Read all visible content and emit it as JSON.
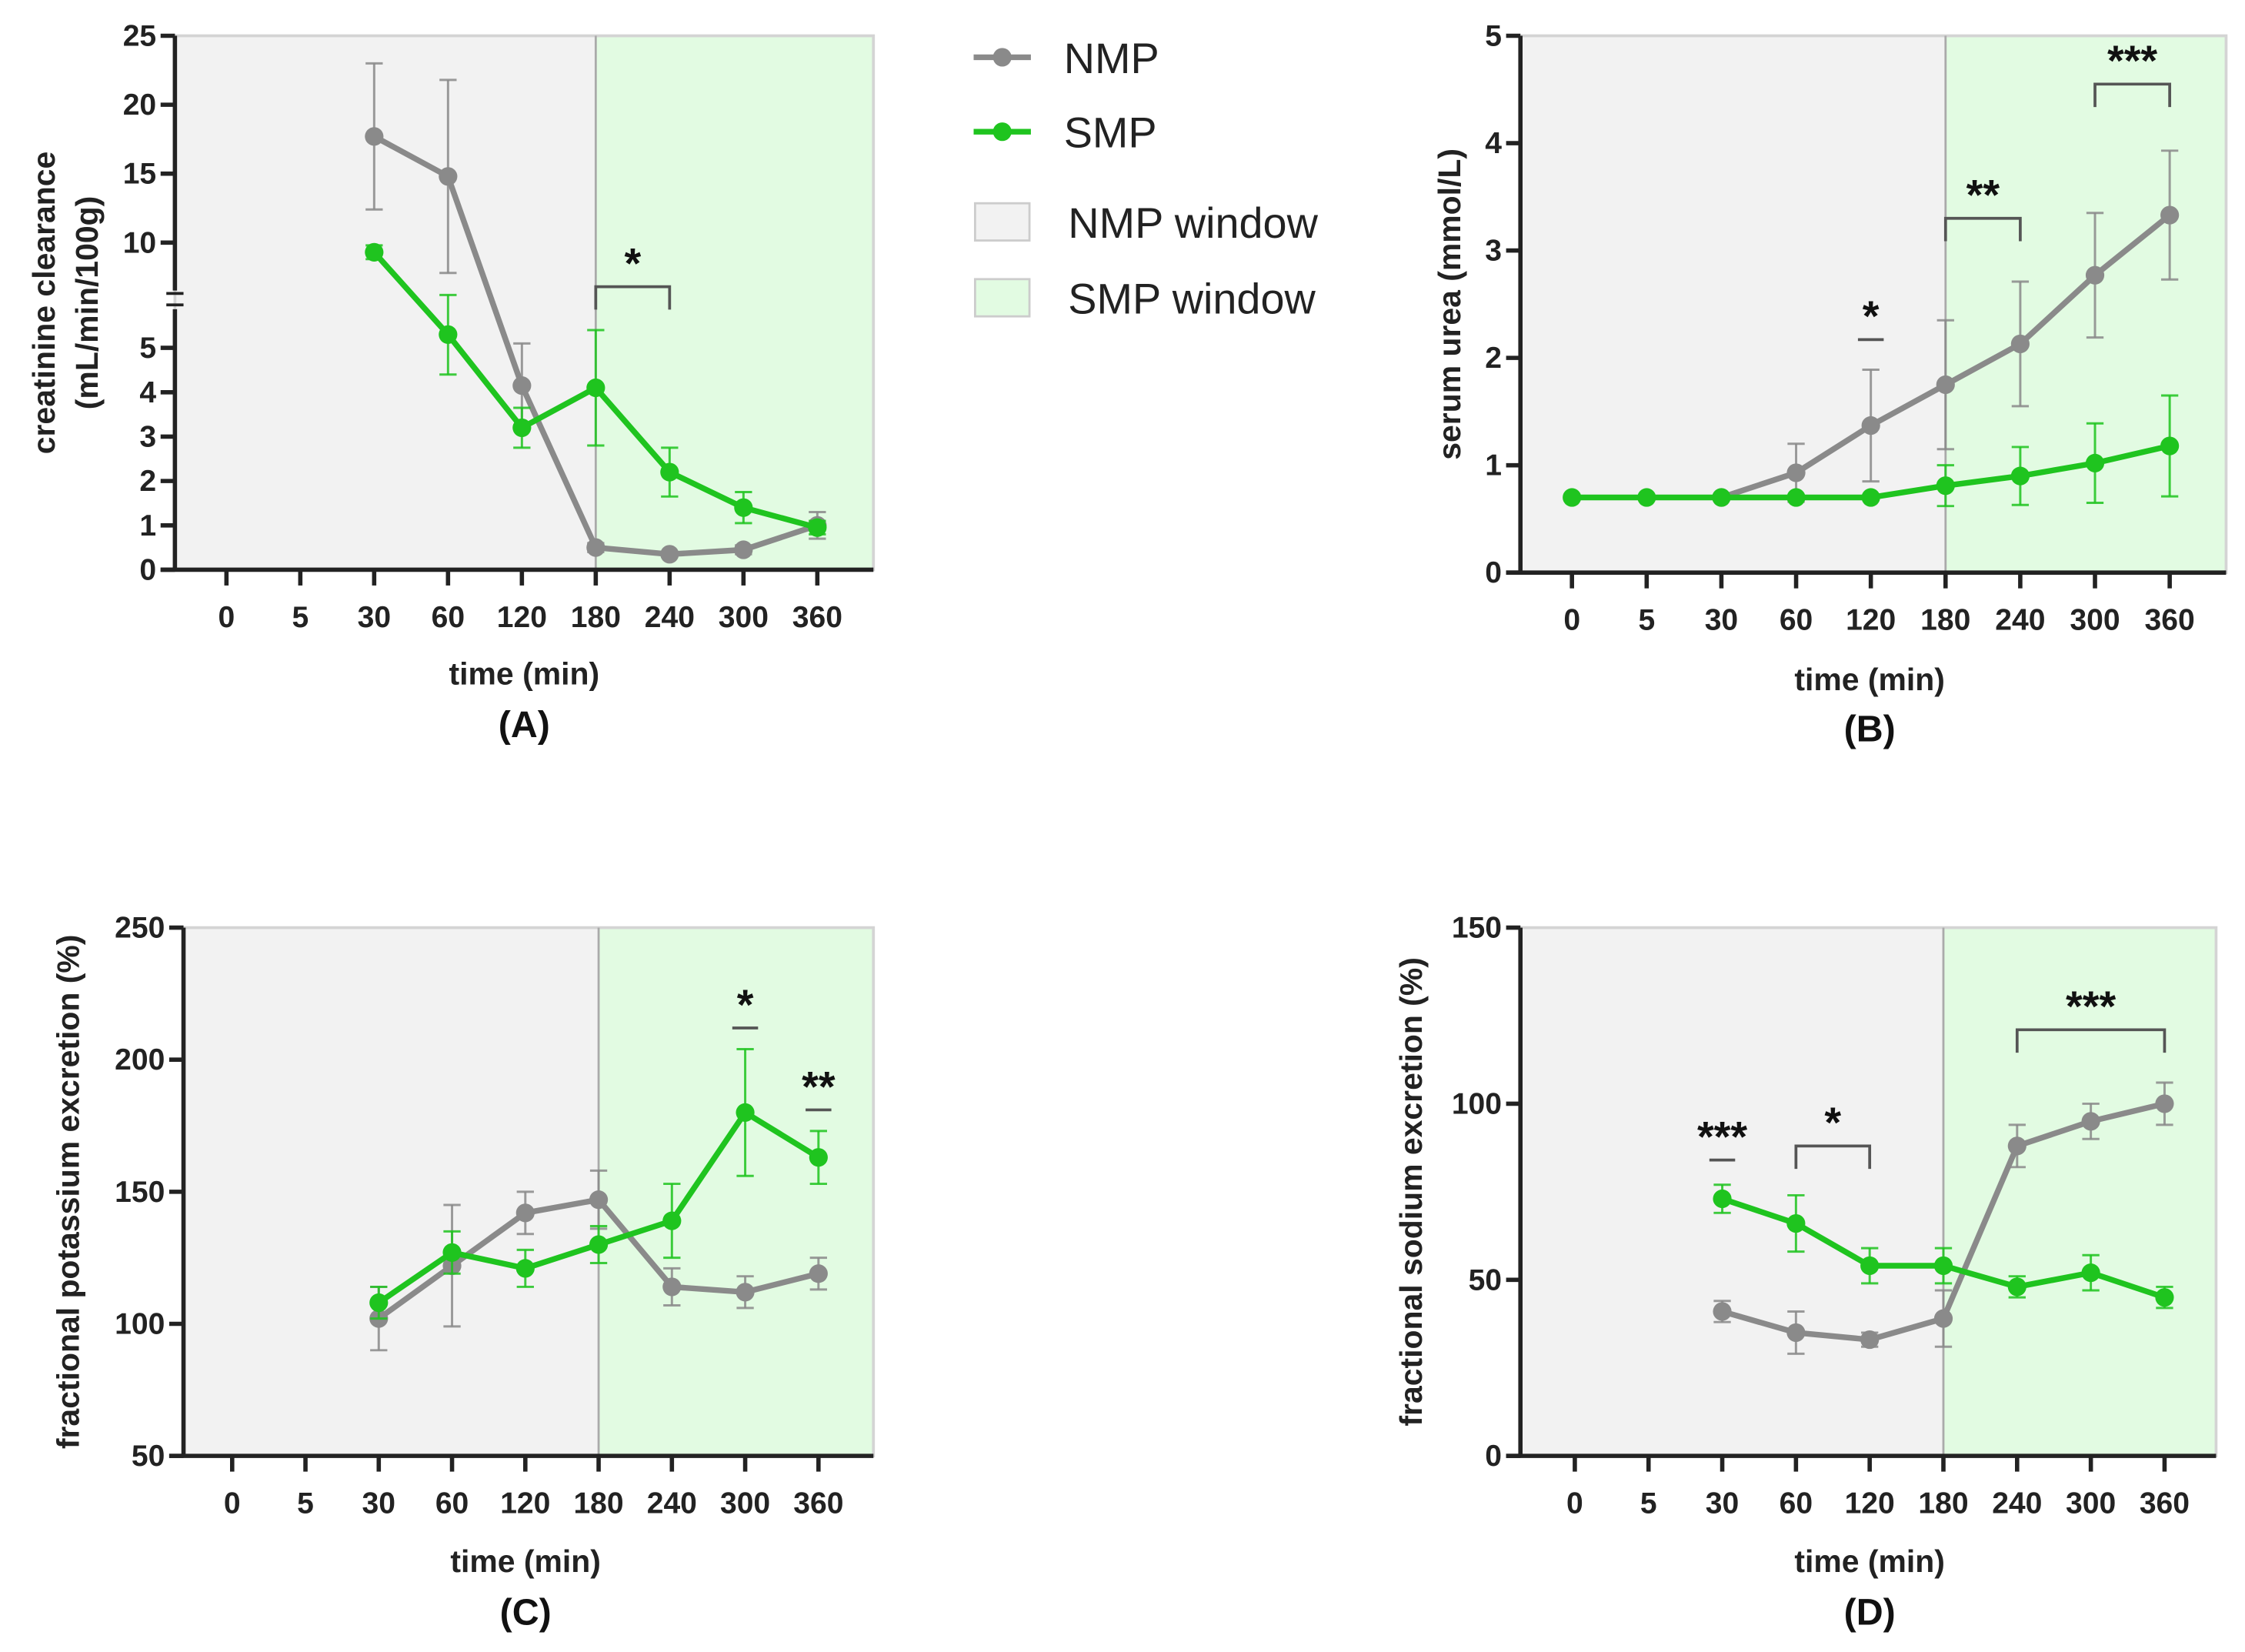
{
  "legend": {
    "items": [
      {
        "label": "NMP",
        "kind": "line",
        "color": "#8a8a8a"
      },
      {
        "label": "SMP",
        "kind": "line",
        "color": "#1fc41f"
      },
      {
        "label": "NMP window",
        "kind": "box",
        "color": "#f2f2f2"
      },
      {
        "label": "SMP window",
        "kind": "box",
        "color": "#e2fbe2"
      }
    ]
  },
  "chart_data": [
    {
      "type": "line",
      "panel_label": "(A)",
      "xlabel": "time (min)",
      "ylabel": [
        "creatinine clearance",
        "(mL/min/100g)"
      ],
      "categories": [
        "0",
        "5",
        "30",
        "60",
        "120",
        "180",
        "240",
        "300",
        "360"
      ],
      "yticks": [
        0,
        1,
        2,
        3,
        4,
        5,
        10,
        15,
        20,
        25
      ],
      "ylim": [
        0,
        25
      ],
      "y_axis_break": [
        6,
        6
      ],
      "windows": {
        "NMP": [
          "0",
          "180"
        ],
        "SMP": [
          "180",
          "360"
        ]
      },
      "series": [
        {
          "name": "NMP",
          "values": [
            null,
            null,
            17.7,
            14.8,
            4.15,
            0.5,
            0.35,
            0.45,
            1.0
          ],
          "errors": [
            null,
            null,
            5.3,
            7.0,
            0.95,
            0.1,
            0.05,
            0.1,
            0.3
          ]
        },
        {
          "name": "SMP",
          "values": [
            null,
            null,
            9.3,
            5.3,
            3.2,
            4.1,
            2.2,
            1.4,
            0.95
          ],
          "errors": [
            null,
            null,
            0.5,
            0.9,
            0.45,
            1.3,
            0.55,
            0.35,
            0.15
          ]
        }
      ],
      "significance": [
        {
          "label": "*",
          "from": "180",
          "to": "240",
          "level": 6.8
        }
      ]
    },
    {
      "type": "line",
      "panel_label": "(B)",
      "xlabel": "time (min)",
      "ylabel": [
        "serum urea (mmol/L)"
      ],
      "categories": [
        "0",
        "5",
        "30",
        "60",
        "120",
        "180",
        "240",
        "300",
        "360"
      ],
      "yticks": [
        0,
        1,
        2,
        3,
        4,
        5
      ],
      "ylim": [
        0,
        5
      ],
      "windows": {
        "NMP": [
          "0",
          "180"
        ],
        "SMP": [
          "180",
          "360"
        ]
      },
      "series": [
        {
          "name": "NMP",
          "values": [
            null,
            null,
            0.7,
            0.93,
            1.37,
            1.75,
            2.13,
            2.77,
            3.33
          ],
          "errors": [
            null,
            null,
            0,
            0.27,
            0.52,
            0.6,
            0.58,
            0.58,
            0.6
          ]
        },
        {
          "name": "SMP",
          "values": [
            0.7,
            0.7,
            0.7,
            0.7,
            0.7,
            0.81,
            0.9,
            1.02,
            1.18
          ],
          "errors": [
            0,
            0,
            0,
            0,
            0,
            0.19,
            0.27,
            0.37,
            0.47
          ]
        }
      ],
      "significance": [
        {
          "label": "*",
          "from": "120",
          "to": "120",
          "level": 2.17
        },
        {
          "label": "**",
          "from": "180",
          "to": "240",
          "level": 3.3
        },
        {
          "label": "***",
          "from": "300",
          "to": "360",
          "level": 4.55
        }
      ]
    },
    {
      "type": "line",
      "panel_label": "(C)",
      "xlabel": "time (min)",
      "ylabel": [
        "fractional potassium excretion (%)"
      ],
      "categories": [
        "0",
        "5",
        "30",
        "60",
        "120",
        "180",
        "240",
        "300",
        "360"
      ],
      "yticks": [
        50,
        100,
        150,
        200,
        250
      ],
      "ylim": [
        50,
        250
      ],
      "windows": {
        "NMP": [
          "0",
          "180"
        ],
        "SMP": [
          "180",
          "360"
        ]
      },
      "series": [
        {
          "name": "NMP",
          "values": [
            null,
            null,
            102,
            122,
            142,
            147,
            114,
            112,
            119
          ],
          "errors": [
            null,
            null,
            12,
            23,
            8,
            11,
            7,
            6,
            6
          ]
        },
        {
          "name": "SMP",
          "values": [
            null,
            null,
            108,
            127,
            121,
            130,
            139,
            180,
            163
          ],
          "errors": [
            null,
            null,
            6,
            8,
            7,
            7,
            14,
            24,
            10
          ]
        }
      ],
      "significance": [
        {
          "label": "*",
          "from": "300",
          "to": "300",
          "level": 212
        },
        {
          "label": "**",
          "from": "360",
          "to": "360",
          "level": 181
        }
      ]
    },
    {
      "type": "line",
      "panel_label": "(D)",
      "xlabel": "time (min)",
      "ylabel": [
        "fractional sodium excretion (%)"
      ],
      "categories": [
        "0",
        "5",
        "30",
        "60",
        "120",
        "180",
        "240",
        "300",
        "360"
      ],
      "yticks": [
        0,
        50,
        100,
        150
      ],
      "ylim": [
        0,
        150
      ],
      "windows": {
        "NMP": [
          "0",
          "180"
        ],
        "SMP": [
          "180",
          "360"
        ]
      },
      "series": [
        {
          "name": "NMP",
          "values": [
            null,
            null,
            41,
            35,
            33,
            39,
            88,
            95,
            100
          ],
          "errors": [
            null,
            null,
            3,
            6,
            2,
            8,
            6,
            5,
            6
          ]
        },
        {
          "name": "SMP",
          "values": [
            null,
            null,
            73,
            66,
            54,
            54,
            48,
            52,
            45
          ],
          "errors": [
            null,
            null,
            4,
            8,
            5,
            5,
            3,
            5,
            3
          ]
        }
      ],
      "significance": [
        {
          "label": "***",
          "from": "30",
          "to": "30",
          "level": 84
        },
        {
          "label": "*",
          "from": "60",
          "to": "120",
          "level": 88
        },
        {
          "label": "***",
          "from": "240",
          "to": "360",
          "level": 121
        }
      ]
    }
  ]
}
